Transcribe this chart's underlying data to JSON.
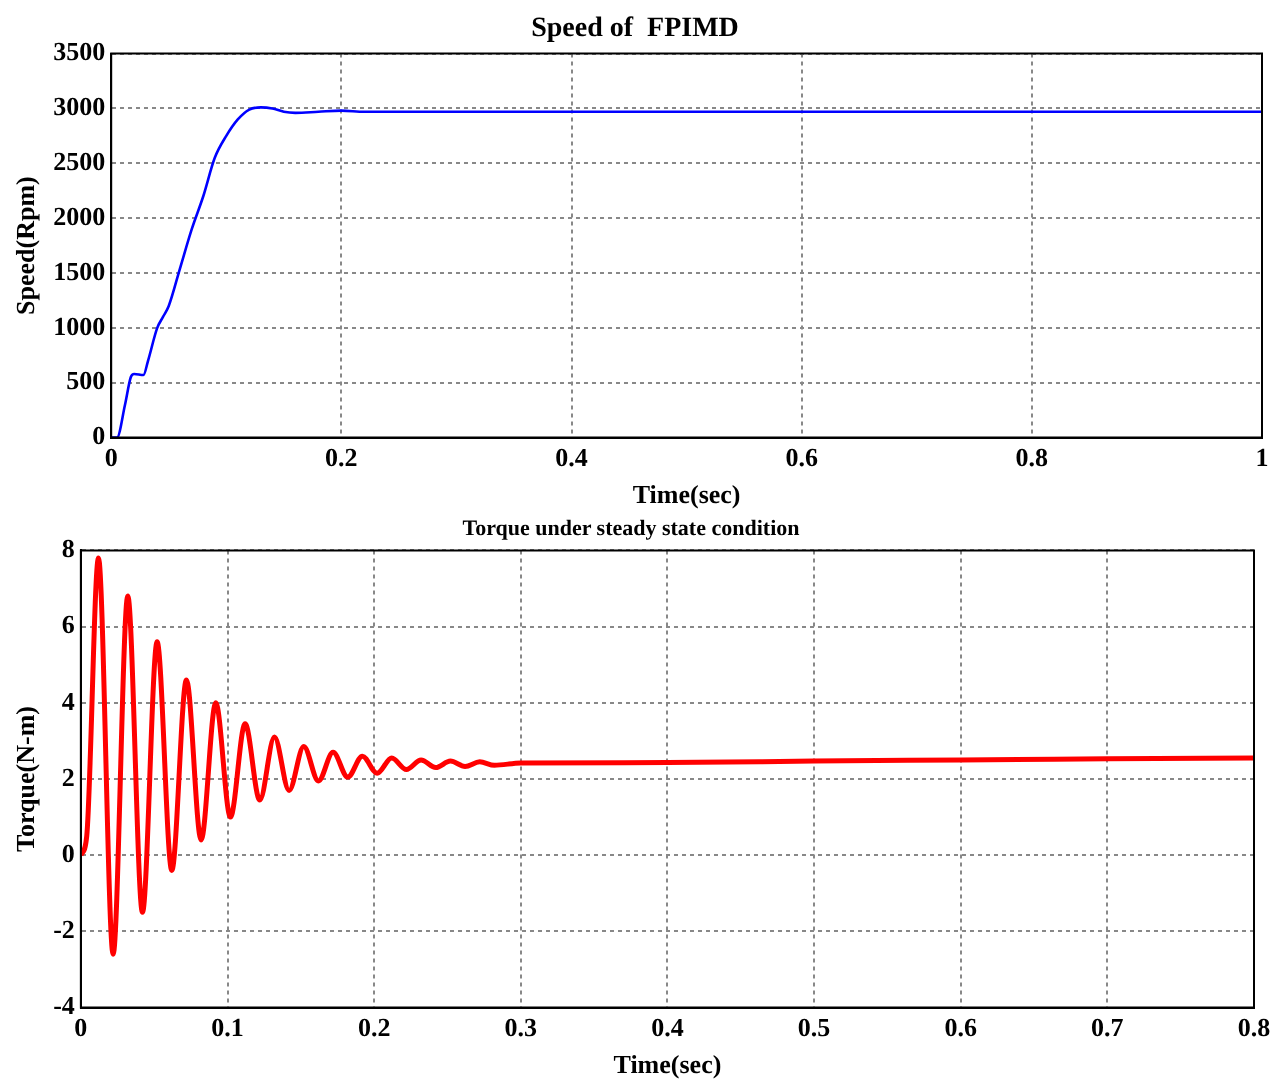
{
  "chart_data": [
    {
      "type": "line",
      "title": "Speed of  FPIMD",
      "xlabel": "Time(sec)",
      "ylabel": "Speed(Rpm)",
      "series": [
        {
          "color": "#0000ff",
          "x": [
            0,
            0.005,
            0.012,
            0.017,
            0.02,
            0.028,
            0.032,
            0.04,
            0.045,
            0.05,
            0.06,
            0.07,
            0.08,
            0.09,
            0.1,
            0.11,
            0.12,
            0.13,
            0.14,
            0.15,
            0.16,
            0.18,
            0.2,
            0.22,
            0.3,
            0.5,
            0.7,
            1
          ],
          "values": [
            0,
            0,
            300,
            550,
            580,
            570,
            700,
            1000,
            1100,
            1200,
            1550,
            1900,
            2200,
            2550,
            2750,
            2900,
            2990,
            3010,
            3000,
            2970,
            2960,
            2970,
            2980,
            2970,
            2970,
            2970,
            2970,
            2970
          ]
        }
      ],
      "xlim": [
        0,
        1
      ],
      "ylim": [
        0,
        3500
      ],
      "xticks": [
        0,
        0.2,
        0.4,
        0.6,
        0.8,
        1
      ],
      "yticks": [
        0,
        500,
        1000,
        1500,
        2000,
        2500,
        3000,
        3500
      ],
      "grid": true,
      "legend": false
    },
    {
      "type": "line",
      "title": "Torque under steady state condition",
      "xlabel": "Time(sec)",
      "ylabel": "Torque(N-m)",
      "series": [
        {
          "color": "#ff0000",
          "x": [
            0,
            0.004,
            0.012,
            0.022,
            0.032,
            0.042,
            0.052,
            0.062,
            0.072,
            0.082,
            0.092,
            0.102,
            0.112,
            0.122,
            0.132,
            0.142,
            0.152,
            0.162,
            0.172,
            0.182,
            0.192,
            0.202,
            0.212,
            0.222,
            0.232,
            0.242,
            0.252,
            0.262,
            0.272,
            0.282,
            0.3,
            0.4,
            0.5,
            0.6,
            0.7,
            0.8
          ],
          "values": [
            0,
            0.5,
            7.8,
            -2.6,
            6.8,
            -1.5,
            5.6,
            -0.4,
            4.6,
            0.4,
            4.0,
            1.0,
            3.45,
            1.45,
            3.1,
            1.7,
            2.85,
            1.95,
            2.7,
            2.05,
            2.6,
            2.15,
            2.55,
            2.25,
            2.5,
            2.3,
            2.47,
            2.33,
            2.45,
            2.36,
            2.42,
            2.43,
            2.47,
            2.5,
            2.53,
            2.55
          ]
        }
      ],
      "xlim": [
        0,
        0.8
      ],
      "ylim": [
        -4,
        8
      ],
      "xticks": [
        0,
        0.1,
        0.2,
        0.3,
        0.4,
        0.5,
        0.6,
        0.7,
        0.8
      ],
      "yticks": [
        -4,
        -2,
        0,
        2,
        4,
        6,
        8
      ],
      "grid": true,
      "legend": false
    }
  ]
}
